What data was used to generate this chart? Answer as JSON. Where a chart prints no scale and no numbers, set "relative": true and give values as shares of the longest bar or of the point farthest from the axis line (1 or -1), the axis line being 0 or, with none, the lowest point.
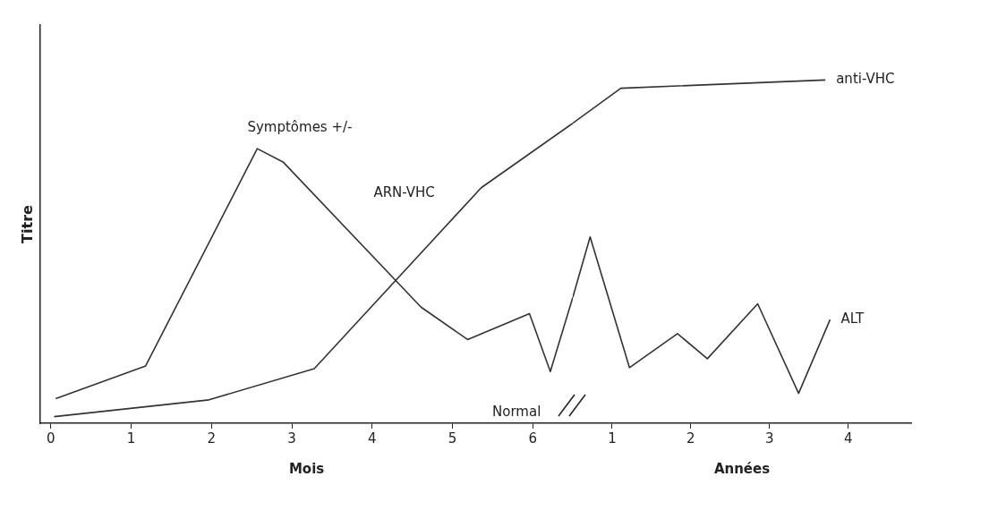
{
  "chart_data": [
    {
      "type": "line",
      "relative": true,
      "ylabel": "Titre",
      "xlabel": "Mois",
      "xlim": [
        -0.13,
        6.5
      ],
      "xticks": [
        0,
        1,
        2,
        3,
        4,
        5,
        6
      ],
      "tick_labels": "x",
      "grid": false,
      "legend": false,
      "marker": "none",
      "line_style": "solid",
      "series": [
        {
          "color": "#333333",
          "x": [
            0.06,
            1.18,
            2.57,
            2.89,
            4.61,
            5.19,
            5.96,
            6.22,
            6.5
          ],
          "values": [
            0.082,
            0.191,
            0.915,
            0.871,
            0.387,
            0.279,
            0.365,
            0.172,
            0.42
          ]
        },
        {
          "color": "#333333",
          "x": [
            0.04,
            1.97,
            3.28,
            5.36,
            6.5
          ],
          "values": [
            0.022,
            0.078,
            0.182,
            0.785,
            1.0
          ]
        }
      ],
      "annotations": [
        "Symptômes +/-",
        "ARN-VHC",
        "Normal"
      ]
    },
    {
      "type": "line",
      "relative": true,
      "xlabel": "Années",
      "xlim": [
        0.5,
        4.8
      ],
      "xticks": [
        1,
        2,
        3,
        4
      ],
      "tick_labels": "x",
      "grid": false,
      "legend": false,
      "marker": "none",
      "line_style": "solid",
      "series": [
        {
          "name": "ALT",
          "color": "#333333",
          "x": [
            0.5,
            0.72,
            1.22,
            1.83,
            2.21,
            2.85,
            3.37,
            3.77
          ],
          "values": [
            0.367,
            0.543,
            0.162,
            0.261,
            0.188,
            0.348,
            0.087,
            0.302
          ]
        },
        {
          "name": "anti-VHC",
          "color": "#333333",
          "x": [
            0.5,
            1.11,
            3.71
          ],
          "values": [
            0.874,
            0.976,
            1.0
          ]
        }
      ]
    }
  ]
}
